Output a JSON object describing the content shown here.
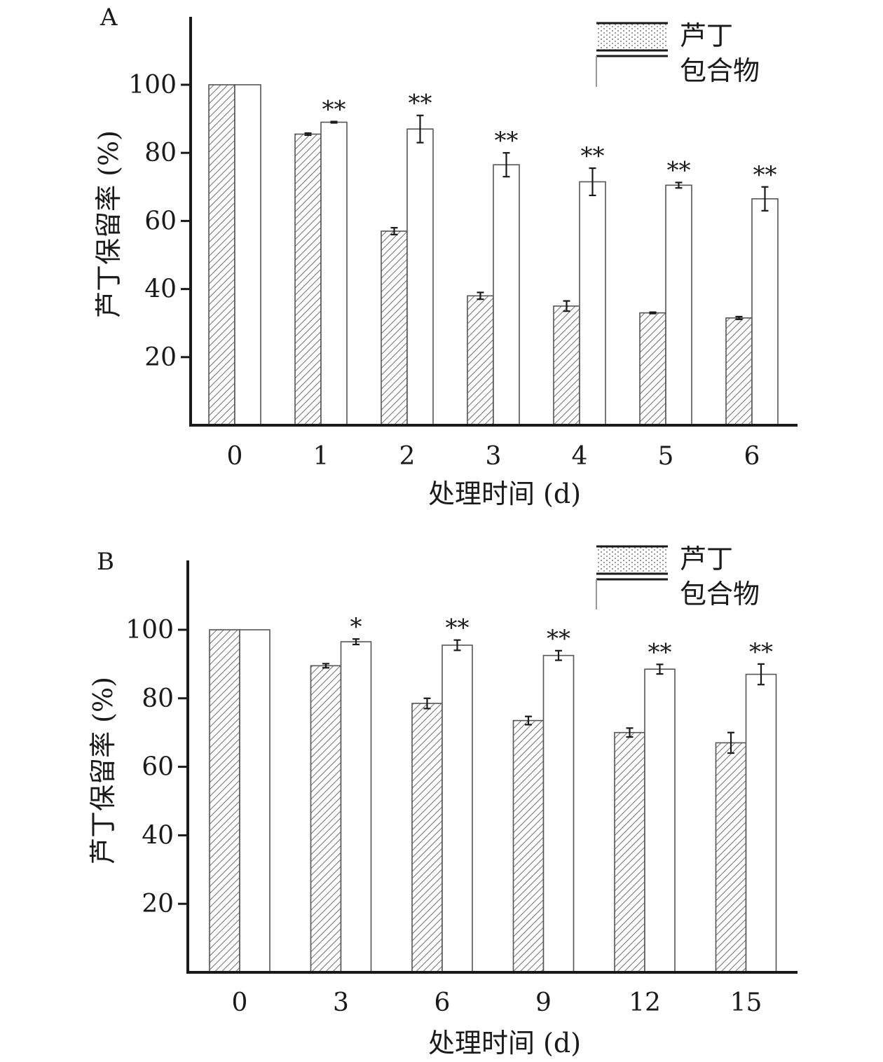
{
  "colors": {
    "axis": "#1a1a1a",
    "bar_stroke": "#555555",
    "hatch": "#6e6e6e",
    "error": "#1a1a1a"
  },
  "legend": {
    "series_1": "芦丁",
    "series_2": "包合物"
  },
  "chart_data": [
    {
      "panel_label": "A",
      "type": "bar",
      "xlabel": "处理时间 (d)",
      "ylabel": "芦丁保留率 (%)",
      "ylim": [
        0,
        120
      ],
      "yticks": [
        20,
        40,
        60,
        80,
        100
      ],
      "categories": [
        "0",
        "1",
        "2",
        "3",
        "4",
        "5",
        "6"
      ],
      "series": [
        {
          "name": "芦丁",
          "pattern": "hatched",
          "values": [
            100,
            85.5,
            57,
            38,
            35,
            33,
            31.5
          ],
          "errors": [
            0,
            0.3,
            1.0,
            1.0,
            1.5,
            0.2,
            0.4
          ]
        },
        {
          "name": "包合物",
          "pattern": "plain",
          "values": [
            100,
            89,
            87,
            76.5,
            71.5,
            70.5,
            66.5
          ],
          "errors": [
            0,
            0.2,
            4.0,
            3.5,
            4.0,
            0.8,
            3.5
          ]
        }
      ],
      "significance": [
        "",
        "**",
        "**",
        "**",
        "**",
        "**",
        "**"
      ],
      "legend_position": "top-right"
    },
    {
      "panel_label": "B",
      "type": "bar",
      "xlabel": "处理时间 (d)",
      "ylabel": "芦丁保留率 (%)",
      "ylim": [
        0,
        120
      ],
      "yticks": [
        20,
        40,
        60,
        80,
        100
      ],
      "categories": [
        "0",
        "3",
        "6",
        "9",
        "12",
        "15"
      ],
      "series": [
        {
          "name": "芦丁",
          "pattern": "hatched",
          "values": [
            100,
            89.5,
            78.5,
            73.5,
            70,
            67
          ],
          "errors": [
            0,
            0.6,
            1.5,
            1.2,
            1.3,
            3.0
          ]
        },
        {
          "name": "包合物",
          "pattern": "plain",
          "values": [
            100,
            96.5,
            95.5,
            92.5,
            88.5,
            87
          ],
          "errors": [
            0,
            0.8,
            1.5,
            1.4,
            1.4,
            3.0
          ]
        }
      ],
      "significance": [
        "",
        "*",
        "**",
        "**",
        "**",
        "**"
      ],
      "legend_position": "top-right"
    }
  ]
}
